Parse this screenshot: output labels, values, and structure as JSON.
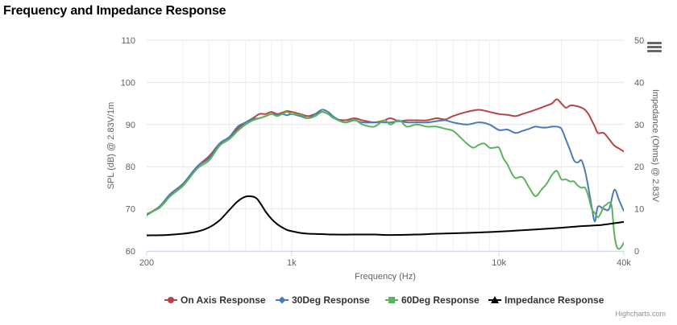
{
  "page": {
    "title": "Frequency and Impedance Response",
    "credits": "Highcharts.com"
  },
  "colors": {
    "on_axis": "#b84343",
    "deg30": "#4a7bb7",
    "deg60": "#5ab55a",
    "impedance": "#000000",
    "grid": "#e6e6e6",
    "axis_text": "#606060"
  },
  "icons": {
    "menu": "menu-icon"
  },
  "chart_data": {
    "type": "line",
    "title": "Frequency and Impedance Response",
    "xlabel": "Frequency (Hz)",
    "ylabel_left": "SPL (dB) @ 2.83V/1m",
    "ylabel_right": "Impedance (Ohms) @ 2.83V",
    "x_scale": "log",
    "xlim": [
      200,
      40000
    ],
    "ylim_left": [
      60,
      110
    ],
    "ylim_right": [
      0,
      50
    ],
    "x_ticks": [
      200,
      1000,
      10000,
      40000
    ],
    "x_tick_labels": [
      "200",
      "1k",
      "10k",
      "40k"
    ],
    "y_left_ticks": [
      "60",
      "70",
      "80",
      "90",
      "100",
      "110"
    ],
    "y_right_ticks": [
      "0",
      "10",
      "20",
      "30",
      "40",
      "50"
    ],
    "grid": true,
    "legend_position": "bottom-center",
    "series": [
      {
        "name": "On Axis Response",
        "axis": "left",
        "marker": "circle",
        "x": [
          200,
          230,
          260,
          300,
          350,
          400,
          450,
          500,
          550,
          600,
          650,
          700,
          750,
          800,
          850,
          900,
          950,
          1000,
          1100,
          1200,
          1300,
          1400,
          1500,
          1600,
          1800,
          2000,
          2200,
          2500,
          2800,
          3000,
          3300,
          3600,
          4000,
          4500,
          5000,
          5500,
          6000,
          7000,
          8000,
          9000,
          10000,
          11000,
          12000,
          13000,
          14000,
          15000,
          16000,
          17000,
          18000,
          19000,
          20000,
          21000,
          22000,
          23000,
          24000,
          25000,
          26000,
          27000,
          28000,
          29000,
          30000,
          32000,
          34000,
          36000,
          38000,
          40000
        ],
        "y": [
          68.7,
          70.5,
          73.5,
          76,
          80,
          82.5,
          85.5,
          87,
          89,
          90.5,
          91.5,
          92.5,
          92.5,
          93,
          92.5,
          92.8,
          93.2,
          93,
          92.5,
          92,
          92.5,
          93,
          92.5,
          91.5,
          91,
          91.5,
          91,
          90.5,
          91,
          91.5,
          90.8,
          91,
          91,
          91,
          91.5,
          91.2,
          92,
          93,
          93.5,
          93,
          92.5,
          92.3,
          92,
          92.5,
          93,
          93.5,
          94,
          94.5,
          95,
          96,
          95,
          94,
          94.5,
          94.5,
          94.3,
          94,
          93.5,
          92.5,
          91,
          89.5,
          88,
          88,
          86.5,
          85,
          84.3,
          83.6
        ]
      },
      {
        "name": "30Deg Response",
        "axis": "left",
        "marker": "diamond",
        "x": [
          200,
          230,
          260,
          300,
          350,
          400,
          450,
          500,
          550,
          600,
          650,
          700,
          750,
          800,
          850,
          900,
          950,
          1000,
          1100,
          1200,
          1300,
          1400,
          1500,
          1600,
          1800,
          2000,
          2200,
          2500,
          2800,
          3000,
          3300,
          3600,
          4000,
          4500,
          5000,
          5500,
          6000,
          7000,
          8000,
          9000,
          10000,
          11000,
          12000,
          13000,
          14000,
          15000,
          16000,
          17000,
          18000,
          19000,
          20000,
          21000,
          22000,
          23000,
          24000,
          25000,
          26000,
          27000,
          28000,
          29000,
          30000,
          32000,
          34000,
          36000,
          38000,
          40000
        ],
        "y": [
          68.5,
          70.5,
          73.5,
          76,
          80,
          82,
          85.5,
          87,
          89.5,
          90.5,
          91.3,
          91.5,
          92,
          92.5,
          92.3,
          92.5,
          92.2,
          92.5,
          92,
          91.5,
          92.5,
          93.5,
          93,
          91.8,
          90.5,
          91,
          90.5,
          90.5,
          90.5,
          90.5,
          90.8,
          90.5,
          90.5,
          90.5,
          90.8,
          91,
          90.5,
          90,
          90.5,
          90,
          88.7,
          88.8,
          88,
          88.5,
          89,
          89.5,
          89.3,
          89.3,
          89.5,
          89.5,
          89,
          86.5,
          84,
          81.5,
          81,
          81.5,
          79,
          75,
          70.5,
          67,
          70.5,
          70,
          70,
          74.5,
          72,
          69.5
        ]
      },
      {
        "name": "60Deg Response",
        "axis": "left",
        "marker": "square",
        "x": [
          200,
          230,
          260,
          300,
          350,
          400,
          450,
          500,
          550,
          600,
          650,
          700,
          750,
          800,
          850,
          900,
          950,
          1000,
          1100,
          1200,
          1300,
          1400,
          1500,
          1600,
          1800,
          2000,
          2200,
          2500,
          2800,
          3000,
          3300,
          3600,
          4000,
          4500,
          5000,
          5500,
          6000,
          6500,
          7000,
          7500,
          8000,
          8500,
          9000,
          9500,
          10000,
          10500,
          11000,
          11500,
          12000,
          13000,
          14000,
          15000,
          16000,
          17000,
          18000,
          19000,
          20000,
          21000,
          22000,
          23000,
          24000,
          25000,
          26000,
          27000,
          28000,
          29000,
          30000,
          31000,
          32000,
          33000,
          34000,
          35000,
          36000,
          37000,
          38000,
          39000,
          40000
        ],
        "y": [
          68.8,
          70.2,
          73,
          75.5,
          79.5,
          81.5,
          85,
          86.5,
          88.5,
          90,
          91,
          91.5,
          92,
          92.5,
          92,
          92.5,
          93,
          92.5,
          92.3,
          91.5,
          92,
          93,
          92.5,
          91.5,
          90.5,
          91.2,
          90,
          89.5,
          91,
          90,
          91,
          89.5,
          90,
          89.5,
          89.5,
          89,
          88.5,
          87,
          85.5,
          84.5,
          85.2,
          85.5,
          84.5,
          84.5,
          84.5,
          82,
          80.5,
          78.5,
          77.3,
          77.5,
          75,
          73,
          74.5,
          76,
          78,
          79,
          77,
          77,
          76.5,
          76.5,
          75.5,
          75,
          75,
          73,
          70,
          69,
          68,
          69,
          70.5,
          71,
          71.5,
          70.5,
          64,
          61,
          60.5,
          61,
          62
        ]
      },
      {
        "name": "Impedance Response",
        "axis": "right",
        "marker": "triangle",
        "x": [
          200,
          250,
          300,
          350,
          400,
          450,
          500,
          550,
          600,
          650,
          680,
          700,
          720,
          750,
          800,
          850,
          900,
          950,
          1000,
          1100,
          1200,
          1400,
          1600,
          2000,
          2500,
          3000,
          4000,
          5000,
          6000,
          8000,
          10000,
          15000,
          20000,
          25000,
          30000,
          35000,
          40000
        ],
        "y": [
          3.7,
          3.8,
          4.1,
          4.6,
          5.6,
          7.3,
          9.7,
          11.8,
          12.9,
          12.9,
          12.4,
          11.6,
          10.7,
          9.3,
          7.6,
          6.4,
          5.6,
          5,
          4.7,
          4.3,
          4.1,
          4,
          3.9,
          3.9,
          3.9,
          3.8,
          3.9,
          4.1,
          4.2,
          4.4,
          4.6,
          5.1,
          5.5,
          5.9,
          6.1,
          6.5,
          6.9
        ]
      }
    ]
  }
}
